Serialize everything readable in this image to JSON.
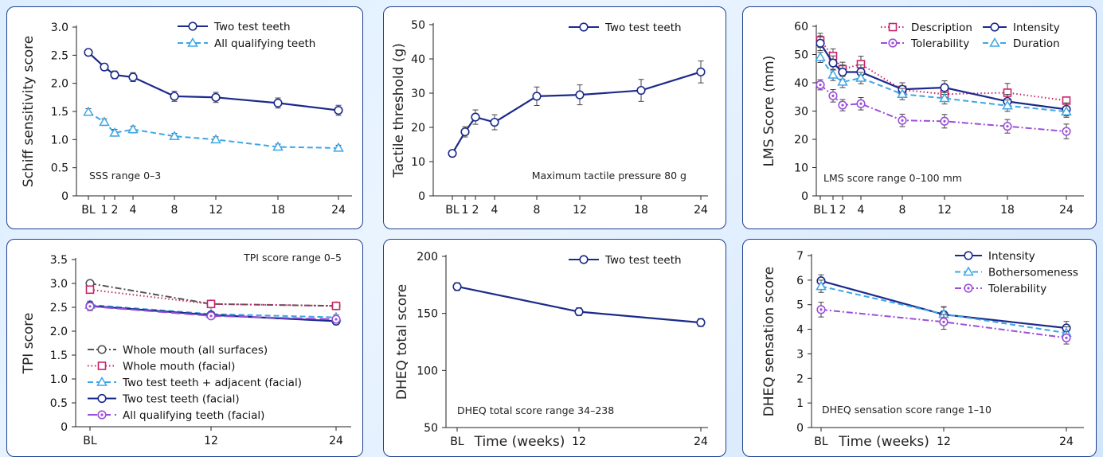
{
  "chart_data": [
    {
      "type": "line",
      "ylabel": "Schiff sensitivity score",
      "xlabel": "",
      "x": [
        0,
        1,
        2,
        4,
        8,
        12,
        18,
        24
      ],
      "xticklabels": [
        "BL",
        "1",
        "2",
        "4",
        "8",
        "12",
        "18",
        "24"
      ],
      "ylim": [
        0,
        3.0
      ],
      "yticks": [
        0,
        0.5,
        1.0,
        1.5,
        2.0,
        2.5,
        3.0
      ],
      "yticklabels": [
        "0",
        "0.5",
        "1.0",
        "1.5",
        "2.0",
        "2.5",
        "3.0"
      ],
      "annotation": "SSS range 0–3",
      "legend_position": "top-right",
      "series": [
        {
          "name": "Two test teeth",
          "color": "#1b2a8a",
          "dash": "solid",
          "marker": "circle",
          "values": [
            2.55,
            2.29,
            2.15,
            2.11,
            1.77,
            1.75,
            1.65,
            1.52
          ],
          "errors": [
            0.03,
            0.06,
            0.07,
            0.08,
            0.09,
            0.09,
            0.09,
            0.09
          ]
        },
        {
          "name": "All qualifying teeth",
          "color": "#3da6e6",
          "dash": "dashed",
          "marker": "triangle",
          "values": [
            1.49,
            1.31,
            1.12,
            1.18,
            1.06,
            1.0,
            0.87,
            0.85
          ],
          "errors": [
            0.06,
            0.06,
            0.06,
            0.06,
            0.05,
            0.05,
            0.05,
            0.05
          ]
        }
      ]
    },
    {
      "type": "line",
      "ylabel": "Tactile threshold (g)",
      "xlabel": "",
      "x": [
        0,
        1,
        2,
        4,
        8,
        12,
        18,
        24
      ],
      "xticklabels": [
        "BL",
        "1",
        "2",
        "4",
        "8",
        "12",
        "18",
        "24"
      ],
      "ylim": [
        0,
        50
      ],
      "yticks": [
        0,
        10,
        20,
        30,
        40,
        50
      ],
      "yticklabels": [
        "0",
        "10",
        "20",
        "30",
        "40",
        "50"
      ],
      "annotation": "Maximum tactile pressure 80 g",
      "legend_position": "top-right",
      "series": [
        {
          "name": "Two test teeth",
          "color": "#1b2a8a",
          "dash": "solid",
          "marker": "circle",
          "values": [
            12.4,
            18.7,
            23.0,
            21.5,
            29.1,
            29.5,
            30.8,
            36.2
          ],
          "errors": [
            0.3,
            1.5,
            2.1,
            2.2,
            2.7,
            2.9,
            3.2,
            3.2
          ]
        }
      ]
    },
    {
      "type": "line",
      "ylabel": "LMS Score (mm)",
      "xlabel": "",
      "x": [
        0,
        1,
        2,
        4,
        8,
        12,
        18,
        24
      ],
      "xticklabels": [
        "BL",
        "1",
        "2",
        "4",
        "8",
        "12",
        "18",
        "24"
      ],
      "ylim": [
        0,
        60
      ],
      "yticks": [
        0,
        10,
        20,
        30,
        40,
        50,
        60
      ],
      "yticklabels": [
        "0",
        "10",
        "20",
        "30",
        "40",
        "50",
        "60"
      ],
      "annotation": "LMS score range 0–100 mm",
      "legend_position": "top-right",
      "series": [
        {
          "name": "Description",
          "color": "#c8246a",
          "dash": "dotted",
          "marker": "square",
          "values": [
            55.0,
            49.5,
            44.8,
            46.6,
            37.5,
            36.0,
            36.5,
            33.7
          ],
          "errors": [
            2.5,
            2.5,
            2.5,
            2.8,
            2.5,
            2.5,
            3.3,
            0
          ]
        },
        {
          "name": "Intensity",
          "color": "#1b2a8a",
          "dash": "solid",
          "marker": "circle",
          "values": [
            54.0,
            47.0,
            43.8,
            43.8,
            37.7,
            38.3,
            33.4,
            30.6
          ],
          "errors": [
            2.6,
            2.5,
            2.5,
            2.5,
            2.3,
            2.4,
            2.5,
            2.3
          ]
        },
        {
          "name": "Tolerability",
          "color": "#9b4fd9",
          "dash": "dashdot",
          "marker": "dotcircle",
          "values": [
            39.3,
            35.4,
            32.1,
            32.6,
            26.7,
            26.4,
            24.6,
            22.8
          ],
          "errors": [
            1.8,
            2.2,
            2.0,
            2.2,
            2.2,
            2.4,
            2.4,
            2.6
          ]
        },
        {
          "name": "Duration",
          "color": "#3da6e6",
          "dash": "dashed",
          "marker": "triangle",
          "values": [
            49.0,
            42.8,
            40.3,
            41.7,
            36.0,
            34.5,
            31.9,
            29.8
          ],
          "errors": [
            1.8,
            2.0,
            2.0,
            2.0,
            2.0,
            2.0,
            2.0,
            2.0
          ]
        }
      ]
    },
    {
      "type": "line",
      "ylabel": "TPI score",
      "xlabel": "",
      "x": [
        0,
        12,
        24
      ],
      "xticklabels": [
        "BL",
        "12",
        "24"
      ],
      "ylim": [
        0,
        3.5
      ],
      "yticks": [
        0,
        0.5,
        1.0,
        1.5,
        2.0,
        2.5,
        3.0,
        3.5
      ],
      "yticklabels": [
        "0",
        "0.5",
        "1.0",
        "1.5",
        "2.0",
        "2.5",
        "3.0",
        "3.5"
      ],
      "annotation": "TPI score range 0–5",
      "legend_position": "bottom-left",
      "series": [
        {
          "name": "Whole mouth (all surfaces)",
          "color": "#555555",
          "dash": "dashdot",
          "marker": "circle",
          "values": [
            3.0,
            2.57,
            2.53
          ],
          "errors": [
            0,
            0,
            0
          ]
        },
        {
          "name": "Whole mouth (facial)",
          "color": "#c8246a",
          "dash": "dotted",
          "marker": "square",
          "values": [
            2.87,
            2.57,
            2.53
          ],
          "errors": [
            0,
            0,
            0
          ]
        },
        {
          "name": "Two test teeth + adjacent (facial)",
          "color": "#3da6e6",
          "dash": "dashed",
          "marker": "triangle",
          "values": [
            2.55,
            2.36,
            2.29
          ],
          "errors": [
            0.06,
            0.05,
            0.05
          ]
        },
        {
          "name": "Two test teeth (facial)",
          "color": "#1b2a8a",
          "dash": "solid",
          "marker": "circle",
          "values": [
            2.53,
            2.34,
            2.21
          ],
          "errors": [
            0.1,
            0.05,
            0.07
          ]
        },
        {
          "name": "All qualifying teeth (facial)",
          "color": "#9b4fd9",
          "dash": "longdash",
          "marker": "dotcircle",
          "values": [
            2.52,
            2.32,
            2.25
          ],
          "errors": [
            0.05,
            0.04,
            0.04
          ]
        }
      ]
    },
    {
      "type": "line",
      "ylabel": "DHEQ total score",
      "xlabel": "Time (weeks)",
      "x": [
        0,
        12,
        24
      ],
      "xticklabels": [
        "BL",
        "12",
        "24"
      ],
      "ylim": [
        50,
        200
      ],
      "yticks": [
        50,
        100,
        150,
        200
      ],
      "yticklabels": [
        "50",
        "100",
        "150",
        "200"
      ],
      "annotation": "DHEQ total score range 34–238",
      "legend_position": "top-right",
      "series": [
        {
          "name": "Two test teeth",
          "color": "#1b2a8a",
          "dash": "solid",
          "marker": "circle",
          "values": [
            173.5,
            151.5,
            142.0
          ],
          "errors": [
            3.5,
            3.5,
            3.5
          ]
        }
      ]
    },
    {
      "type": "line",
      "ylabel": "DHEQ sensation score",
      "xlabel": "Time (weeks)",
      "x": [
        0,
        12,
        24
      ],
      "xticklabels": [
        "BL",
        "12",
        "24"
      ],
      "ylim": [
        0,
        7
      ],
      "yticks": [
        0,
        1,
        2,
        3,
        4,
        5,
        6,
        7
      ],
      "yticklabels": [
        "0",
        "1",
        "2",
        "3",
        "4",
        "5",
        "6",
        "7"
      ],
      "annotation": "DHEQ sensation score range 1–10",
      "legend_position": "top-right",
      "series": [
        {
          "name": "Intensity",
          "color": "#1b2a8a",
          "dash": "solid",
          "marker": "circle",
          "values": [
            5.97,
            4.6,
            4.05
          ],
          "errors": [
            0.25,
            0.3,
            0.27
          ]
        },
        {
          "name": "Bothersomeness",
          "color": "#3da6e6",
          "dash": "dashed",
          "marker": "triangle",
          "values": [
            5.75,
            4.62,
            3.85
          ],
          "errors": [
            0.25,
            0.3,
            0.25
          ]
        },
        {
          "name": "Tolerability",
          "color": "#9b4fd9",
          "dash": "dashdot",
          "marker": "dotcircle",
          "values": [
            4.8,
            4.3,
            3.65
          ],
          "errors": [
            0.3,
            0.3,
            0.25
          ]
        }
      ]
    }
  ]
}
